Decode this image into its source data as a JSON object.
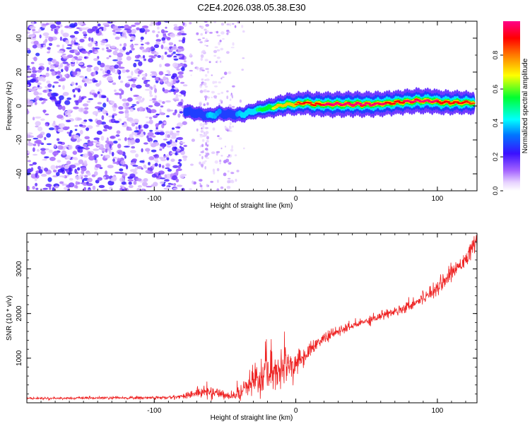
{
  "title": "C2E4.2026.038.05.38.E30",
  "chart_data": [
    {
      "type": "heatmap",
      "xlabel": "Height of straight line (km)",
      "ylabel": "Frequency (Hz)",
      "xlim": [
        -190,
        128
      ],
      "ylim": [
        -50,
        50
      ],
      "xticks": [
        -100,
        0,
        100
      ],
      "yticks": [
        -40,
        -20,
        0,
        20,
        40
      ],
      "colorbar": {
        "label": "Normalized spectral amplitude",
        "ticks": [
          0.0,
          0.2,
          0.4,
          0.6,
          0.8
        ],
        "range": [
          0,
          1
        ]
      },
      "ridge": [
        {
          "x": -78,
          "y": -3,
          "a": 0.3
        },
        {
          "x": -72,
          "y": -4,
          "a": 0.35
        },
        {
          "x": -66,
          "y": -5,
          "a": 0.3
        },
        {
          "x": -60,
          "y": -6,
          "a": 0.4
        },
        {
          "x": -54,
          "y": -4,
          "a": 0.35
        },
        {
          "x": -46,
          "y": -5,
          "a": 0.3
        },
        {
          "x": -38,
          "y": -5,
          "a": 0.4
        },
        {
          "x": -30,
          "y": -3,
          "a": 0.45
        },
        {
          "x": -24,
          "y": -2,
          "a": 0.55
        },
        {
          "x": -18,
          "y": -1,
          "a": 0.65
        },
        {
          "x": -12,
          "y": 0,
          "a": 0.75
        },
        {
          "x": -6,
          "y": 1,
          "a": 0.8
        },
        {
          "x": 0,
          "y": 1,
          "a": 0.85
        },
        {
          "x": 6,
          "y": 2,
          "a": 0.9
        },
        {
          "x": 14,
          "y": 1,
          "a": 0.95
        },
        {
          "x": 25,
          "y": 1,
          "a": 1.0
        },
        {
          "x": 40,
          "y": 1,
          "a": 1.0
        },
        {
          "x": 55,
          "y": 1,
          "a": 1.0
        },
        {
          "x": 70,
          "y": 2,
          "a": 0.95
        },
        {
          "x": 85,
          "y": 3,
          "a": 1.0
        },
        {
          "x": 95,
          "y": 3,
          "a": 1.0
        },
        {
          "x": 105,
          "y": 2,
          "a": 0.95
        },
        {
          "x": 118,
          "y": 2,
          "a": 0.9
        },
        {
          "x": 126,
          "y": 2,
          "a": 0.85
        }
      ]
    },
    {
      "type": "line",
      "xlabel": "Height of straight line (km)",
      "ylabel": "SNR (10 * v/v)",
      "xlim": [
        -190,
        128
      ],
      "ylim": [
        0,
        3800
      ],
      "xticks": [
        -100,
        0,
        100
      ],
      "yticks": [
        1000,
        2000,
        3000
      ],
      "series": [
        {
          "name": "SNR",
          "color": "#ee2222",
          "x": [
            -190,
            -150,
            -110,
            -90,
            -80,
            -70,
            -60,
            -50,
            -45,
            -40,
            -35,
            -30,
            -25,
            -20,
            -15,
            -10,
            -5,
            0,
            5,
            10,
            20,
            30,
            40,
            50,
            60,
            70,
            80,
            90,
            100,
            110,
            120,
            128
          ],
          "y": [
            100,
            105,
            110,
            115,
            150,
            220,
            250,
            180,
            140,
            200,
            350,
            450,
            560,
            620,
            700,
            760,
            800,
            860,
            1000,
            1200,
            1450,
            1600,
            1720,
            1840,
            1950,
            2050,
            2180,
            2350,
            2600,
            2900,
            3250,
            3600
          ],
          "noise": [
            20,
            25,
            35,
            35,
            40,
            120,
            140,
            90,
            60,
            150,
            220,
            300,
            360,
            420,
            420,
            360,
            320,
            260,
            200,
            150,
            120,
            100,
            100,
            100,
            100,
            100,
            120,
            140,
            160,
            170,
            180,
            180
          ]
        }
      ]
    }
  ]
}
